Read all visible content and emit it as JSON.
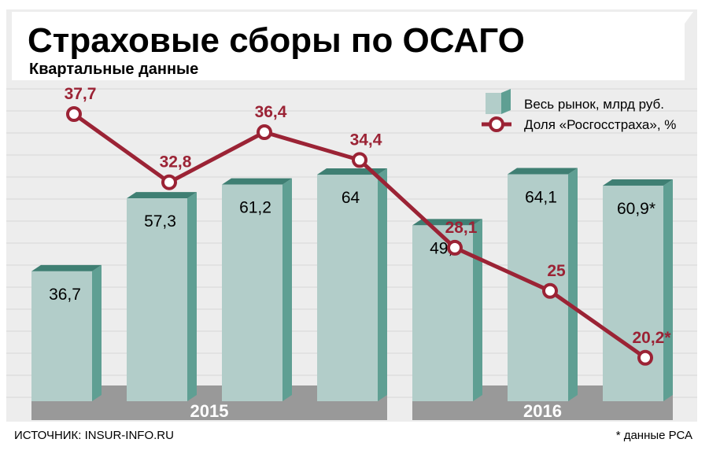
{
  "title": "Страховые сборы по ОСАГО",
  "subtitle": "Квартальные данные",
  "legend": {
    "bars": "Весь рынок, млрд руб.",
    "line": "Доля «Росгосстраха», %"
  },
  "years": [
    "2015",
    "2016"
  ],
  "source": "ИСТОЧНИК: INSUR-INFO.RU",
  "footnote": "* данные РСА",
  "colors": {
    "bar_front": "#b2cdc9",
    "bar_side": "#5f9f93",
    "bar_top": "#3f7f73",
    "line": "#9b2335",
    "year_band": "#999999",
    "grid": "#d6d6d6"
  },
  "chart_data": {
    "type": "bar",
    "categories": [
      "",
      "",
      "",
      "",
      "",
      "",
      ""
    ],
    "series": [
      {
        "name": "Весь рынок, млрд руб.",
        "type": "bar",
        "values": [
          36.7,
          57.3,
          61.2,
          64,
          49.7,
          64.1,
          60.9
        ],
        "labels": [
          "36,7",
          "57,3",
          "61,2",
          "64",
          "49,7",
          "64,1",
          "60,9*"
        ]
      },
      {
        "name": "Доля «Росгосстраха», %",
        "type": "line",
        "values": [
          37.7,
          32.8,
          36.4,
          34.4,
          28.1,
          25,
          20.2
        ],
        "labels": [
          "37,7",
          "32,8",
          "36,4",
          "34,4",
          "28,1",
          "25",
          "20,2*"
        ]
      }
    ],
    "year_groups": [
      {
        "label": "2015",
        "from": 0,
        "to": 3
      },
      {
        "label": "2016",
        "from": 4,
        "to": 6
      }
    ],
    "legend_position": "top-right",
    "grid": true
  }
}
